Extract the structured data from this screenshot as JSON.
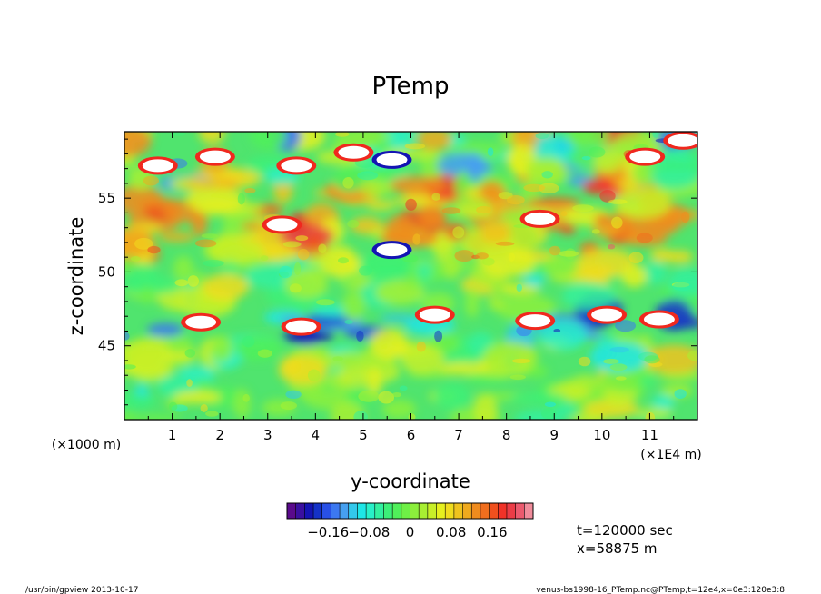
{
  "chart_data": {
    "type": "heatmap",
    "title": "PTemp",
    "xlabel": "y-coordinate",
    "ylabel": "z-coordinate",
    "x_unit_left": "(×1000 m)",
    "x_unit_right": "(×1E4 m)",
    "xlim": [
      0,
      12
    ],
    "ylim": [
      40,
      59.5
    ],
    "x_ticks": [
      1,
      2,
      3,
      4,
      5,
      6,
      7,
      8,
      9,
      10,
      11
    ],
    "y_ticks": [
      45,
      50,
      55
    ],
    "colorbar": {
      "min": -0.24,
      "max": 0.24,
      "step": 0.01,
      "tick_values": [
        -0.16,
        -0.08,
        0,
        0.08,
        0.16
      ],
      "tick_labels": [
        "−0.16",
        "−0.08",
        "0",
        "0.08",
        "0.16"
      ],
      "colors": [
        "#5a0a8c",
        "#3a10a0",
        "#1414b4",
        "#1432c8",
        "#2850e6",
        "#3c78f0",
        "#46a0f0",
        "#32c8eb",
        "#1ee6e6",
        "#28f0c8",
        "#32f0a0",
        "#3cf078",
        "#50f05a",
        "#6ef046",
        "#8cf03c",
        "#a8f032",
        "#c8f028",
        "#e6f01e",
        "#f0dc1e",
        "#f0c31e",
        "#f0aa1e",
        "#f08c1e",
        "#f06e1e",
        "#f0501e",
        "#f03228",
        "#eb3c46",
        "#eb5a6e",
        "#f08c9b"
      ]
    },
    "extremes_color": "#ffffff",
    "features": [
      {
        "y": 0.7,
        "z": 57.2,
        "value": 0.3
      },
      {
        "y": 1.9,
        "z": 57.8,
        "value": 0.25
      },
      {
        "y": 3.6,
        "z": 57.2,
        "value": 0.3
      },
      {
        "y": 4.8,
        "z": 58.1,
        "value": 0.28
      },
      {
        "y": 5.6,
        "z": 57.6,
        "value": -0.25
      },
      {
        "y": 3.3,
        "z": 53.2,
        "value": 0.28
      },
      {
        "y": 5.6,
        "z": 51.5,
        "value": -0.25
      },
      {
        "y": 8.7,
        "z": 53.6,
        "value": 0.26
      },
      {
        "y": 10.9,
        "z": 57.8,
        "value": 0.3
      },
      {
        "y": 11.7,
        "z": 58.9,
        "value": 0.26
      },
      {
        "y": 1.6,
        "z": 46.6,
        "value": 0.26
      },
      {
        "y": 3.7,
        "z": 46.3,
        "value": 0.3
      },
      {
        "y": 6.5,
        "z": 47.1,
        "value": 0.28
      },
      {
        "y": 8.6,
        "z": 46.7,
        "value": 0.3
      },
      {
        "y": 10.1,
        "z": 47.1,
        "value": 0.25
      },
      {
        "y": 11.2,
        "z": 46.8,
        "value": 0.26
      }
    ]
  },
  "annotations": {
    "time": "t=120000 sec",
    "position": "x=58875 m"
  },
  "footer": {
    "program": "/usr/bin/gpview  2013-10-17",
    "source": "venus-bs1998-16_PTemp.nc@PTemp,t=12e4,x=0e3:120e3:8"
  }
}
